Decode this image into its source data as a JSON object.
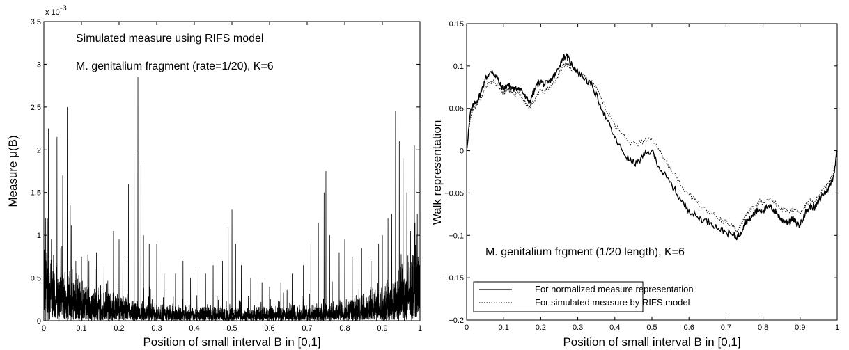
{
  "chart_data": [
    {
      "type": "line",
      "xlabel": "Position of small interval B in [0,1]",
      "ylabel": "Measure μ(B)",
      "exponent_label": "x 10",
      "exponent_power": "-3",
      "annotations": [
        "Simulated measure using RIFS model",
        "M. genitalium fragment (rate=1/20), K=6"
      ],
      "xlim": [
        0,
        1
      ],
      "ylim": [
        0,
        3.5
      ],
      "x_ticks": [
        0,
        0.1,
        0.2,
        0.3,
        0.4,
        0.5,
        0.6,
        0.7,
        0.8,
        0.9,
        1
      ],
      "x_tick_labels": [
        "0",
        "0.1",
        "0.2",
        "0.3",
        "0.4",
        "0.5",
        "0.6",
        "0.7",
        "0.8",
        "0.9",
        "1"
      ],
      "y_ticks": [
        0,
        0.5,
        1,
        1.5,
        2,
        2.5,
        3,
        3.5
      ],
      "y_tick_labels": [
        "0",
        "0.5",
        "1",
        "1.5",
        "2",
        "2.5",
        "3",
        "3.5"
      ],
      "n_points": 4096,
      "grid": false,
      "peaks": [
        [
          0.005,
          1.2
        ],
        [
          0.012,
          2.25
        ],
        [
          0.02,
          0.95
        ],
        [
          0.035,
          2.15
        ],
        [
          0.045,
          0.85
        ],
        [
          0.05,
          1.7
        ],
        [
          0.062,
          2.5
        ],
        [
          0.07,
          1.35
        ],
        [
          0.085,
          0.7
        ],
        [
          0.1,
          0.75
        ],
        [
          0.12,
          0.7
        ],
        [
          0.14,
          0.8
        ],
        [
          0.16,
          0.65
        ],
        [
          0.185,
          1.05
        ],
        [
          0.2,
          0.95
        ],
        [
          0.21,
          0.75
        ],
        [
          0.225,
          1.6
        ],
        [
          0.24,
          1.95
        ],
        [
          0.25,
          2.85
        ],
        [
          0.258,
          1.85
        ],
        [
          0.265,
          1.0
        ],
        [
          0.28,
          0.9
        ],
        [
          0.3,
          0.9
        ],
        [
          0.32,
          0.55
        ],
        [
          0.35,
          0.55
        ],
        [
          0.37,
          0.7
        ],
        [
          0.39,
          0.5
        ],
        [
          0.41,
          0.6
        ],
        [
          0.43,
          0.55
        ],
        [
          0.45,
          0.65
        ],
        [
          0.475,
          0.7
        ],
        [
          0.49,
          1.1
        ],
        [
          0.5,
          1.3
        ],
        [
          0.51,
          0.9
        ],
        [
          0.525,
          0.65
        ],
        [
          0.55,
          0.5
        ],
        [
          0.58,
          0.45
        ],
        [
          0.6,
          0.4
        ],
        [
          0.63,
          0.45
        ],
        [
          0.66,
          0.55
        ],
        [
          0.69,
          0.65
        ],
        [
          0.71,
          0.9
        ],
        [
          0.73,
          1.15
        ],
        [
          0.745,
          1.5
        ],
        [
          0.75,
          1.75
        ],
        [
          0.76,
          1.0
        ],
        [
          0.785,
          0.8
        ],
        [
          0.8,
          0.95
        ],
        [
          0.82,
          0.75
        ],
        [
          0.845,
          0.85
        ],
        [
          0.87,
          0.7
        ],
        [
          0.89,
          0.9
        ],
        [
          0.9,
          1.0
        ],
        [
          0.915,
          1.2
        ],
        [
          0.925,
          1.25
        ],
        [
          0.935,
          2.45
        ],
        [
          0.945,
          2.1
        ],
        [
          0.955,
          1.9
        ],
        [
          0.965,
          1.5
        ],
        [
          0.975,
          1.05
        ],
        [
          0.985,
          2.05
        ],
        [
          0.993,
          1.25
        ],
        [
          0.997,
          2.35
        ]
      ]
    },
    {
      "type": "line",
      "xlabel": "Position of small interval B in [0,1]",
      "ylabel": "Walk representation",
      "annotation": "M. genitalium frgment (1/20 length), K=6",
      "xlim": [
        0,
        1
      ],
      "ylim": [
        -0.2,
        0.15
      ],
      "x_ticks": [
        0,
        0.1,
        0.2,
        0.3,
        0.4,
        0.5,
        0.6,
        0.7,
        0.8,
        0.9,
        1
      ],
      "x_tick_labels": [
        "0",
        "0.1",
        "0.2",
        "0.3",
        "0.4",
        "0.5",
        "0.6",
        "0.7",
        "0.8",
        "0.9",
        "1"
      ],
      "y_ticks": [
        -0.2,
        -0.15,
        -0.1,
        -0.05,
        0,
        0.05,
        0.1,
        0.15
      ],
      "y_tick_labels": [
        "−0.2",
        "−0.15",
        "−0.1",
        "−0.05",
        "0",
        "0.05",
        "0.1",
        "0.15"
      ],
      "legend_position": "bottom-left",
      "grid": false,
      "series": [
        {
          "name": "For normalized measure representation",
          "style": "solid",
          "x": [
            0,
            0.01,
            0.02,
            0.03,
            0.04,
            0.05,
            0.06,
            0.07,
            0.08,
            0.09,
            0.1,
            0.11,
            0.12,
            0.13,
            0.14,
            0.15,
            0.16,
            0.17,
            0.18,
            0.19,
            0.2,
            0.21,
            0.22,
            0.23,
            0.24,
            0.25,
            0.26,
            0.27,
            0.28,
            0.29,
            0.3,
            0.32,
            0.34,
            0.36,
            0.38,
            0.4,
            0.42,
            0.44,
            0.46,
            0.48,
            0.5,
            0.52,
            0.54,
            0.56,
            0.58,
            0.6,
            0.62,
            0.64,
            0.66,
            0.68,
            0.7,
            0.72,
            0.73,
            0.74,
            0.75,
            0.76,
            0.77,
            0.78,
            0.79,
            0.8,
            0.81,
            0.82,
            0.83,
            0.84,
            0.85,
            0.86,
            0.87,
            0.88,
            0.89,
            0.9,
            0.91,
            0.92,
            0.93,
            0.94,
            0.95,
            0.96,
            0.97,
            0.98,
            0.99,
            1.0
          ],
          "y": [
            0,
            0.045,
            0.055,
            0.06,
            0.07,
            0.085,
            0.09,
            0.093,
            0.088,
            0.078,
            0.072,
            0.078,
            0.075,
            0.072,
            0.075,
            0.07,
            0.062,
            0.058,
            0.068,
            0.078,
            0.082,
            0.078,
            0.08,
            0.085,
            0.09,
            0.1,
            0.11,
            0.112,
            0.104,
            0.098,
            0.093,
            0.085,
            0.075,
            0.055,
            0.035,
            0.015,
            0.0,
            -0.012,
            -0.015,
            -0.005,
            0.0,
            -0.02,
            -0.032,
            -0.045,
            -0.06,
            -0.07,
            -0.078,
            -0.082,
            -0.085,
            -0.092,
            -0.096,
            -0.1,
            -0.102,
            -0.097,
            -0.085,
            -0.082,
            -0.078,
            -0.072,
            -0.07,
            -0.07,
            -0.068,
            -0.066,
            -0.07,
            -0.075,
            -0.082,
            -0.083,
            -0.085,
            -0.08,
            -0.086,
            -0.088,
            -0.076,
            -0.07,
            -0.065,
            -0.068,
            -0.06,
            -0.052,
            -0.048,
            -0.042,
            -0.03,
            0.0
          ]
        },
        {
          "name": "For simulated measure by RIFS model",
          "style": "dotted",
          "x": [
            0,
            0.01,
            0.02,
            0.03,
            0.04,
            0.05,
            0.06,
            0.07,
            0.08,
            0.09,
            0.1,
            0.11,
            0.12,
            0.13,
            0.14,
            0.15,
            0.16,
            0.17,
            0.18,
            0.19,
            0.2,
            0.21,
            0.22,
            0.23,
            0.24,
            0.25,
            0.26,
            0.27,
            0.28,
            0.29,
            0.3,
            0.32,
            0.34,
            0.36,
            0.38,
            0.4,
            0.42,
            0.44,
            0.46,
            0.48,
            0.5,
            0.52,
            0.54,
            0.56,
            0.58,
            0.6,
            0.62,
            0.64,
            0.66,
            0.68,
            0.7,
            0.72,
            0.73,
            0.74,
            0.75,
            0.76,
            0.77,
            0.78,
            0.79,
            0.8,
            0.81,
            0.82,
            0.83,
            0.84,
            0.85,
            0.86,
            0.87,
            0.88,
            0.89,
            0.9,
            0.91,
            0.92,
            0.93,
            0.94,
            0.95,
            0.96,
            0.97,
            0.98,
            0.99,
            1.0
          ],
          "y": [
            0,
            0.04,
            0.05,
            0.055,
            0.062,
            0.075,
            0.08,
            0.082,
            0.078,
            0.072,
            0.068,
            0.072,
            0.07,
            0.066,
            0.068,
            0.062,
            0.056,
            0.052,
            0.058,
            0.066,
            0.072,
            0.07,
            0.074,
            0.078,
            0.082,
            0.092,
            0.1,
            0.103,
            0.098,
            0.095,
            0.092,
            0.088,
            0.08,
            0.065,
            0.045,
            0.03,
            0.02,
            0.01,
            0.008,
            0.012,
            0.015,
            0.0,
            -0.015,
            -0.028,
            -0.042,
            -0.052,
            -0.06,
            -0.068,
            -0.074,
            -0.08,
            -0.085,
            -0.09,
            -0.094,
            -0.088,
            -0.078,
            -0.074,
            -0.068,
            -0.064,
            -0.06,
            -0.062,
            -0.058,
            -0.056,
            -0.06,
            -0.065,
            -0.07,
            -0.07,
            -0.072,
            -0.068,
            -0.072,
            -0.075,
            -0.068,
            -0.062,
            -0.058,
            -0.06,
            -0.052,
            -0.046,
            -0.042,
            -0.036,
            -0.026,
            0.0
          ]
        }
      ]
    }
  ]
}
